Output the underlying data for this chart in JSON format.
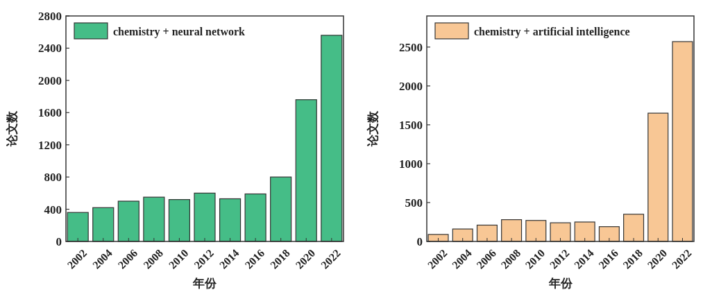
{
  "chart_data": [
    {
      "type": "bar",
      "categories": [
        "2002",
        "2004",
        "2006",
        "2008",
        "2010",
        "2012",
        "2014",
        "2016",
        "2018",
        "2020",
        "2022"
      ],
      "series": [
        {
          "name": "chemistry + neural network",
          "color": "#45bd87",
          "values": [
            360,
            420,
            500,
            550,
            520,
            600,
            530,
            590,
            800,
            1760,
            2560
          ]
        }
      ],
      "xlabel": "年份",
      "ylabel": "论文数",
      "ylim": [
        0,
        2800
      ],
      "yticks": [
        0,
        400,
        800,
        1200,
        1600,
        2000,
        2400,
        2800
      ],
      "legend": "top left",
      "grid": false
    },
    {
      "type": "bar",
      "categories": [
        "2002",
        "2004",
        "2006",
        "2008",
        "2010",
        "2012",
        "2014",
        "2016",
        "2018",
        "2020",
        "2022"
      ],
      "series": [
        {
          "name": "chemistry + artificial intelligence",
          "color": "#f8c795",
          "values": [
            90,
            160,
            210,
            280,
            270,
            240,
            250,
            190,
            350,
            1650,
            2570
          ]
        }
      ],
      "xlabel": "年份",
      "ylabel": "论文数",
      "ylim": [
        0,
        2900
      ],
      "yticks": [
        0,
        500,
        1000,
        1500,
        2000,
        2500
      ],
      "legend": "top left",
      "grid": false
    }
  ]
}
